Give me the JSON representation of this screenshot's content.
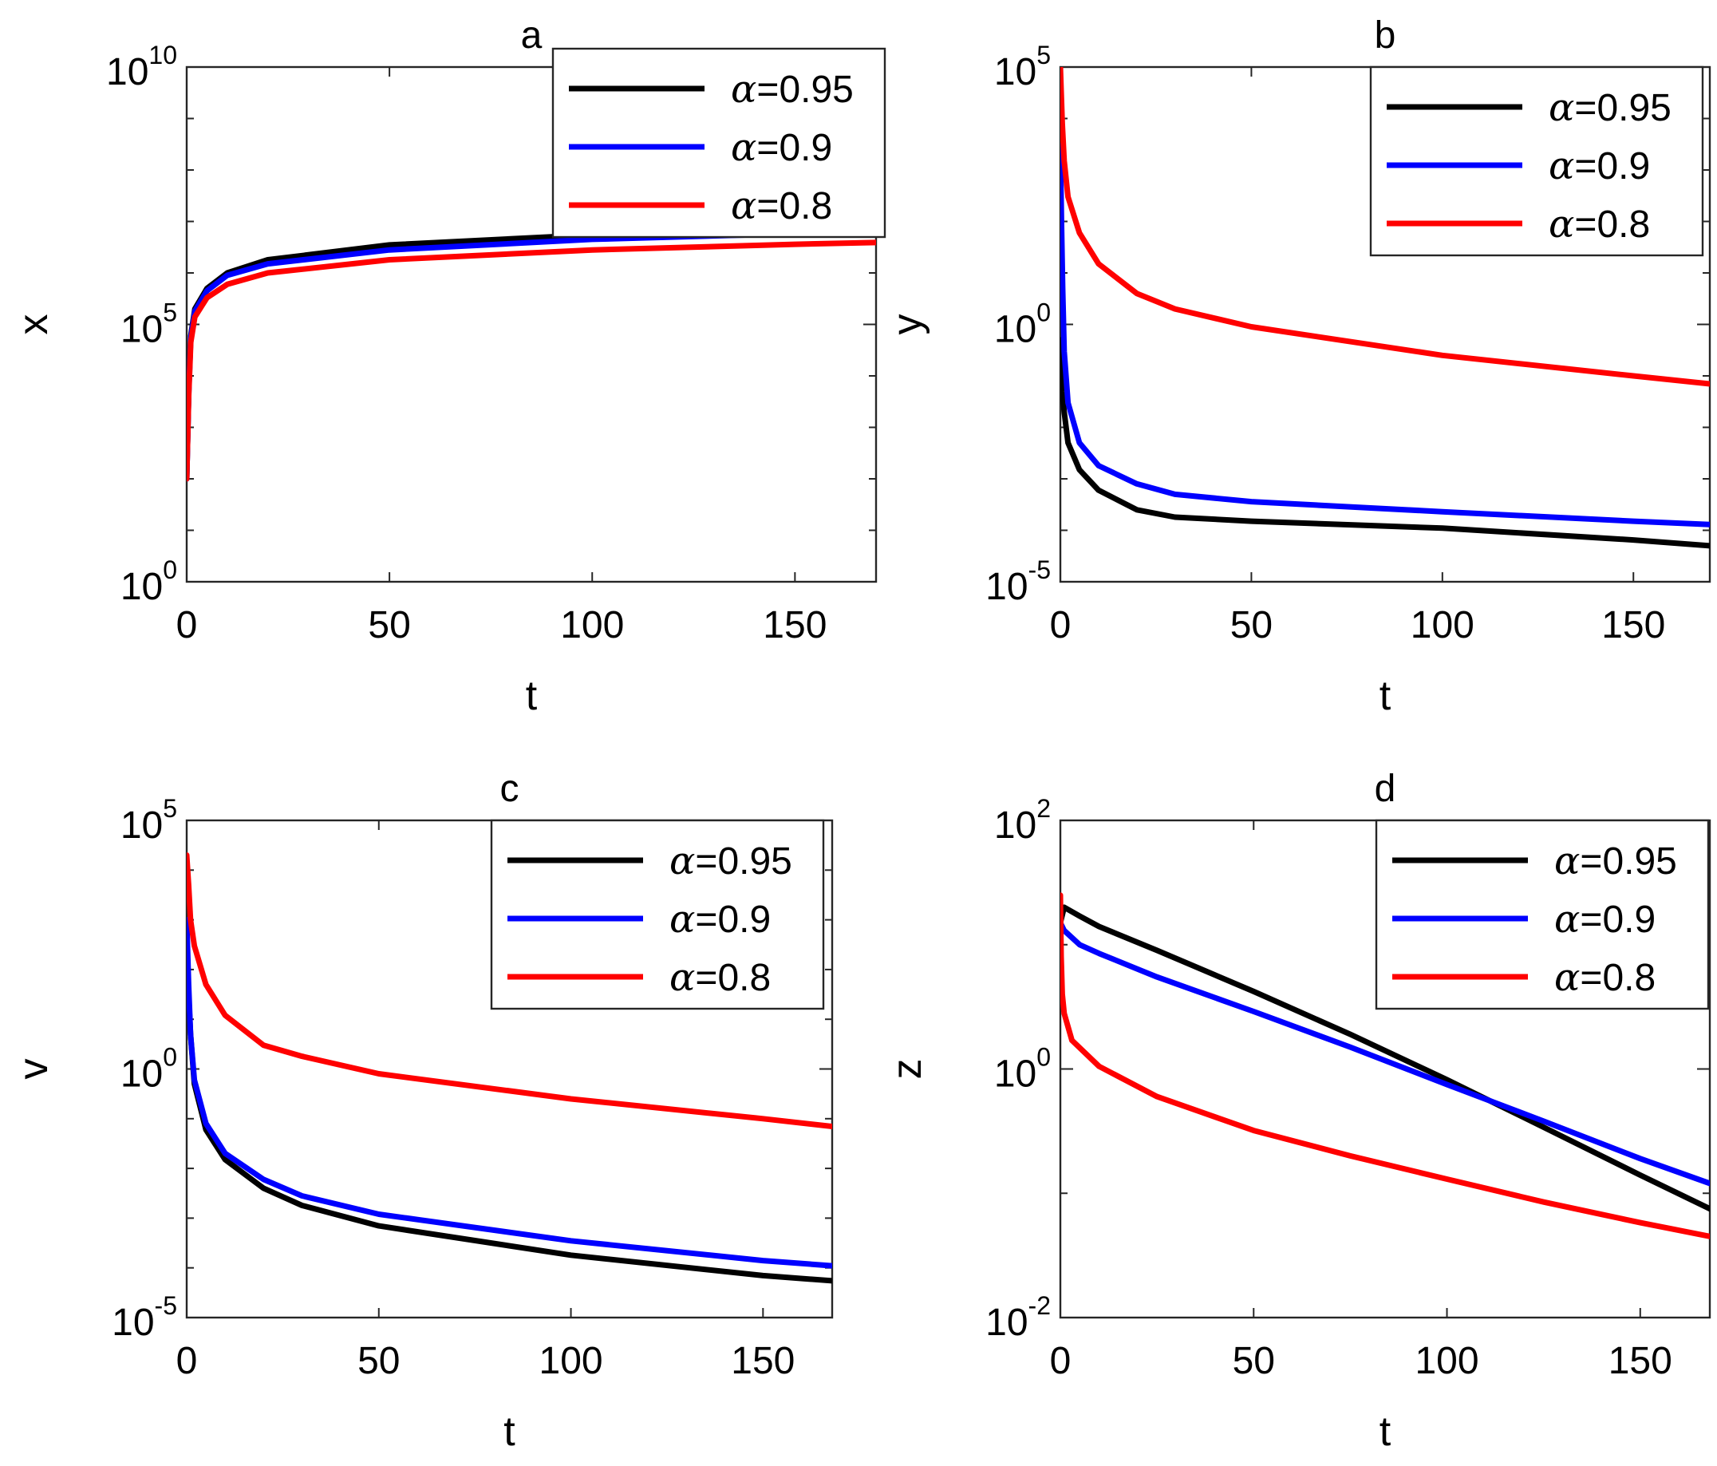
{
  "colors": {
    "black": "#000000",
    "blue": "#0000ff",
    "red": "#ff0000"
  },
  "chart_data": [
    {
      "type": "line",
      "title": "a",
      "xlabel": "t",
      "ylabel": "x",
      "yscale": "log",
      "xlim": [
        0,
        170
      ],
      "ylim": [
        1,
        10000000000
      ],
      "xticks": [
        0,
        50,
        100,
        150
      ],
      "yticks": [
        {
          "base": "10",
          "exp": "0",
          "value": 1
        },
        {
          "base": "10",
          "exp": "5",
          "value": 100000
        },
        {
          "base": "10",
          "exp": "10",
          "value": 10000000000
        }
      ],
      "legend_position": "top-right",
      "series": [
        {
          "name": "α=0.95",
          "alpha_symbol": "α",
          "alpha_value": "=0.95",
          "color": "#000000",
          "t": [
            0,
            0.5,
            1,
            2,
            5,
            10,
            20,
            50,
            100,
            150,
            170
          ],
          "values": [
            100,
            5000,
            60000,
            200000,
            500000,
            1000000,
            1800000,
            3500000,
            5500000,
            7000000,
            7500000
          ]
        },
        {
          "name": "α=0.9",
          "alpha_symbol": "α",
          "alpha_value": "=0.9",
          "color": "#0000ff",
          "t": [
            0,
            0.5,
            1,
            2,
            5,
            10,
            20,
            50,
            100,
            150,
            170
          ],
          "values": [
            100,
            4500,
            55000,
            180000,
            450000,
            900000,
            1500000,
            2800000,
            4500000,
            5800000,
            6200000
          ]
        },
        {
          "name": "α=0.8",
          "alpha_symbol": "α",
          "alpha_value": "=0.8",
          "color": "#ff0000",
          "t": [
            0,
            0.5,
            1,
            2,
            5,
            10,
            20,
            50,
            100,
            150,
            170
          ],
          "values": [
            100,
            4000,
            45000,
            140000,
            330000,
            600000,
            1000000,
            1800000,
            2800000,
            3600000,
            3900000
          ]
        }
      ]
    },
    {
      "type": "line",
      "title": "b",
      "xlabel": "t",
      "ylabel": "y",
      "yscale": "log",
      "xlim": [
        0,
        170
      ],
      "ylim": [
        1e-05,
        100000
      ],
      "xticks": [
        0,
        50,
        100,
        150
      ],
      "yticks": [
        {
          "base": "10",
          "exp": "-5",
          "value": 1e-05
        },
        {
          "base": "10",
          "exp": "0",
          "value": 1
        },
        {
          "base": "10",
          "exp": "5",
          "value": 100000
        }
      ],
      "legend_position": "top-right",
      "series": [
        {
          "name": "α=0.95",
          "alpha_symbol": "α",
          "alpha_value": "=0.95",
          "color": "#000000",
          "t": [
            0,
            0.5,
            1,
            2,
            5,
            10,
            20,
            30,
            50,
            100,
            150,
            170
          ],
          "values": [
            0.5,
            0.05,
            0.02,
            0.005,
            0.0015,
            0.0006,
            0.00025,
            0.00018,
            0.00015,
            0.00011,
            6.5e-05,
            5e-05
          ]
        },
        {
          "name": "α=0.9",
          "alpha_symbol": "α",
          "alpha_value": "=0.9",
          "color": "#0000ff",
          "t": [
            0,
            0.3,
            0.6,
            1,
            2,
            5,
            10,
            20,
            30,
            50,
            100,
            150,
            170
          ],
          "values": [
            3000,
            100,
            5,
            0.3,
            0.03,
            0.005,
            0.0018,
            0.0008,
            0.0005,
            0.00036,
            0.00023,
            0.00015,
            0.00013
          ]
        },
        {
          "name": "α=0.8",
          "alpha_symbol": "α",
          "alpha_value": "=0.8",
          "color": "#ff0000",
          "t": [
            0,
            0.5,
            1,
            2,
            5,
            10,
            20,
            30,
            50,
            100,
            150,
            170
          ],
          "values": [
            100000,
            8000,
            1500,
            300,
            60,
            15,
            4,
            2,
            0.9,
            0.25,
            0.1,
            0.07
          ]
        }
      ]
    },
    {
      "type": "line",
      "title": "c",
      "xlabel": "t",
      "ylabel": "v",
      "yscale": "log",
      "xlim": [
        0,
        168
      ],
      "ylim": [
        1e-05,
        100000
      ],
      "xticks": [
        0,
        50,
        100,
        150
      ],
      "yticks": [
        {
          "base": "10",
          "exp": "-5",
          "value": 1e-05
        },
        {
          "base": "10",
          "exp": "0",
          "value": 1
        },
        {
          "base": "10",
          "exp": "5",
          "value": 100000
        }
      ],
      "legend_position": "top-right",
      "series": [
        {
          "name": "α=0.95",
          "alpha_symbol": "α",
          "alpha_value": "=0.95",
          "color": "#000000",
          "t": [
            0,
            0.5,
            1,
            2,
            5,
            10,
            20,
            30,
            50,
            100,
            150,
            168
          ],
          "values": [
            100,
            30,
            5,
            0.5,
            0.06,
            0.015,
            0.004,
            0.0018,
            0.0007,
            0.00018,
            7e-05,
            5.5e-05
          ]
        },
        {
          "name": "α=0.9",
          "alpha_symbol": "α",
          "alpha_value": "=0.9",
          "color": "#0000ff",
          "t": [
            0,
            0.5,
            1,
            2,
            5,
            10,
            20,
            30,
            50,
            100,
            150,
            168
          ],
          "values": [
            1000,
            50,
            5,
            0.6,
            0.08,
            0.02,
            0.006,
            0.0028,
            0.0012,
            0.00035,
            0.00014,
            0.00011
          ]
        },
        {
          "name": "α=0.8",
          "alpha_symbol": "α",
          "alpha_value": "=0.8",
          "color": "#ff0000",
          "t": [
            0,
            0.5,
            1,
            2,
            5,
            10,
            20,
            30,
            50,
            100,
            150,
            168
          ],
          "values": [
            20000,
            5000,
            1000,
            300,
            50,
            12,
            3,
            1.8,
            0.8,
            0.25,
            0.1,
            0.07
          ]
        }
      ]
    },
    {
      "type": "line",
      "title": "d",
      "xlabel": "t",
      "ylabel": "z",
      "yscale": "log",
      "xlim": [
        0,
        168
      ],
      "ylim": [
        0.01,
        100
      ],
      "xticks": [
        0,
        50,
        100,
        150
      ],
      "yticks": [
        {
          "base": "10",
          "exp": "-2",
          "value": 0.01
        },
        {
          "base": "10",
          "exp": "0",
          "value": 1
        },
        {
          "base": "10",
          "exp": "2",
          "value": 100
        }
      ],
      "legend_position": "top-right",
      "series": [
        {
          "name": "α=0.95",
          "alpha_symbol": "α",
          "alpha_value": "=0.95",
          "color": "#000000",
          "t": [
            0,
            1,
            5,
            10,
            25,
            50,
            75,
            100,
            125,
            150,
            168
          ],
          "values": [
            15,
            20,
            17,
            14,
            9,
            4.2,
            1.9,
            0.82,
            0.34,
            0.14,
            0.075
          ]
        },
        {
          "name": "α=0.9",
          "alpha_symbol": "α",
          "alpha_value": "=0.9",
          "color": "#0000ff",
          "t": [
            0,
            1,
            5,
            10,
            25,
            50,
            75,
            100,
            125,
            150,
            168
          ],
          "values": [
            15,
            13,
            10,
            8.5,
            5.5,
            2.9,
            1.5,
            0.75,
            0.38,
            0.19,
            0.12
          ]
        },
        {
          "name": "α=0.8",
          "alpha_symbol": "α",
          "alpha_value": "=0.8",
          "color": "#ff0000",
          "t": [
            0,
            0.2,
            0.5,
            1,
            3,
            10,
            25,
            50,
            75,
            100,
            125,
            150,
            168
          ],
          "values": [
            25,
            8,
            4,
            2.8,
            1.7,
            1.05,
            0.6,
            0.32,
            0.2,
            0.13,
            0.085,
            0.058,
            0.045
          ]
        }
      ]
    }
  ]
}
